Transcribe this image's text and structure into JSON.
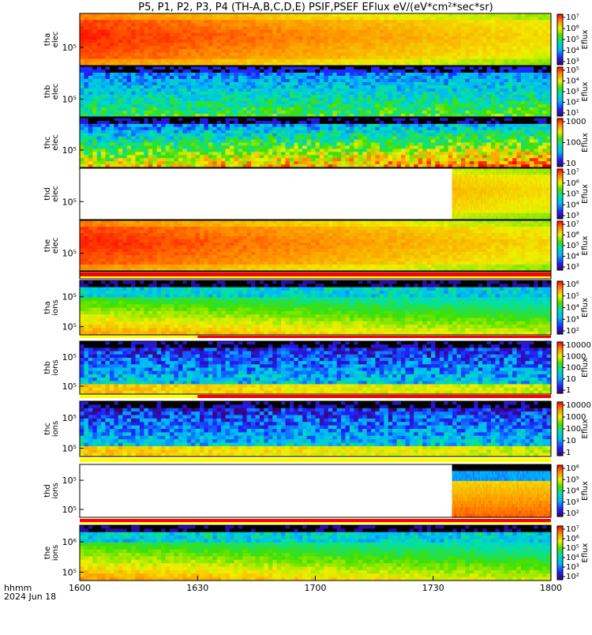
{
  "title": "P5, P1, P2, P3, P4 (TH-A,B,C,D,E) PSIF,PSEF EFlux eV/(eV*cm²*sec*sr)",
  "chart_data": {
    "type": "heatmap",
    "title": "P5, P1, P2, P3, P4 (TH-A,B,C,D,E) PSIF,PSEF EFlux eV/(eV*cm²*sec*sr)",
    "x_ticks": [
      "1600",
      "1630",
      "1700",
      "1730",
      "1800"
    ],
    "x_label_line1": "hhmm",
    "x_label_line2": "2024 Jun 18",
    "colorbar_label": "Eflux",
    "panels": [
      {
        "probe": "tha",
        "species": "elec",
        "y_ticks": [
          "10⁵"
        ],
        "cbar_ticks": [
          "10⁷",
          "10⁶",
          "10⁵",
          "10⁴",
          "10³"
        ],
        "data_start": 0.0,
        "style": "elec-high"
      },
      {
        "probe": "thb",
        "species": "elec",
        "y_ticks": [
          "10⁵"
        ],
        "cbar_ticks": [
          "10⁵",
          "10⁴",
          "10³",
          "10²",
          "10¹"
        ],
        "data_start": 0.0,
        "style": "elec-low"
      },
      {
        "probe": "thc",
        "species": "elec",
        "y_ticks": [
          "10⁵"
        ],
        "cbar_ticks": [
          "1000",
          "100",
          "10"
        ],
        "data_start": 0.0,
        "style": "elec-mid"
      },
      {
        "probe": "thd",
        "species": "elec",
        "y_ticks": [
          "10⁵"
        ],
        "cbar_ticks": [
          "10⁷",
          "10⁶",
          "10⁵",
          "10⁴",
          "10³"
        ],
        "data_start": 0.79,
        "style": "elec-high"
      },
      {
        "probe": "the",
        "species": "elec",
        "y_ticks": [
          "10⁵"
        ],
        "cbar_ticks": [
          "10⁷",
          "10⁶",
          "10⁵",
          "10⁴",
          "10³"
        ],
        "data_start": 0.0,
        "style": "elec-high"
      },
      {
        "probe": "tha",
        "species": "ions",
        "y_ticks": [
          "10⁵",
          "10⁵"
        ],
        "cbar_ticks": [
          "10⁶",
          "10⁵",
          "10⁴",
          "10³",
          "10²"
        ],
        "data_start": 0.0,
        "style": "ion"
      },
      {
        "probe": "thb",
        "species": "ions",
        "y_ticks": [
          "10⁵",
          "10⁵"
        ],
        "cbar_ticks": [
          "10000",
          "1000",
          "100",
          "10",
          "1"
        ],
        "data_start": 0.0,
        "style": "ion-low"
      },
      {
        "probe": "thc",
        "species": "ions",
        "y_ticks": [
          "10⁵",
          "10⁵"
        ],
        "cbar_ticks": [
          "10000",
          "1000",
          "100",
          "10",
          "1"
        ],
        "data_start": 0.0,
        "style": "ion-low"
      },
      {
        "probe": "thd",
        "species": "ions",
        "y_ticks": [
          "10⁵",
          "10⁵"
        ],
        "cbar_ticks": [
          "10⁶",
          "10⁵",
          "10⁴",
          "10³",
          "10²"
        ],
        "data_start": 0.79,
        "style": "ion-thd"
      },
      {
        "probe": "the",
        "species": "ions",
        "y_ticks": [
          "10⁶",
          "10⁵"
        ],
        "cbar_ticks": [
          "10⁷",
          "10⁶",
          "10⁵",
          "10⁴",
          "10³",
          "10²"
        ],
        "data_start": 0.0,
        "style": "ion"
      }
    ]
  }
}
